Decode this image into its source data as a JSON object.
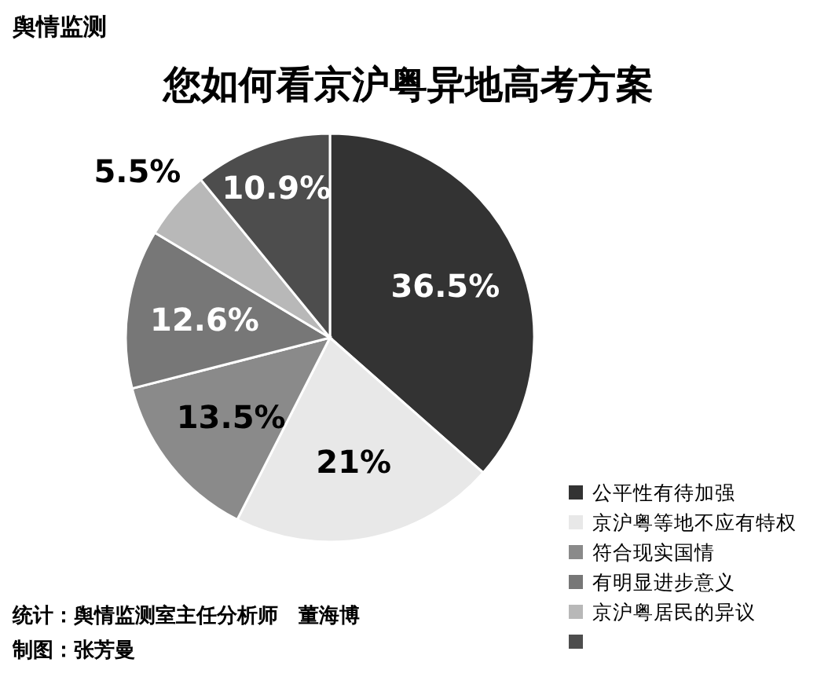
{
  "chart_data": {
    "type": "pie",
    "title": "您如何看京沪粤异地高考方案",
    "categories": [
      "公平性有待加强",
      "京沪粤等地不应有特权",
      "符合现实国情",
      "有明显进步意义",
      "京沪粤居民的异议",
      null
    ],
    "values": [
      36.5,
      21,
      13.5,
      12.6,
      5.5,
      10.9
    ],
    "colors": [
      "#333333",
      "#e8e8e8",
      "#8a8a8a",
      "#777777",
      "#b8b8b8",
      "#4d4d4d"
    ],
    "value_labels": [
      "36.5%",
      "21%",
      "13.5%",
      "12.6%",
      "5.5%",
      "10.9%"
    ],
    "legend": "bottom right",
    "annotations": [
      "舆情监测",
      "统计：舆情监测室主任分析师　董海博",
      "制图：张芳曼"
    ]
  }
}
